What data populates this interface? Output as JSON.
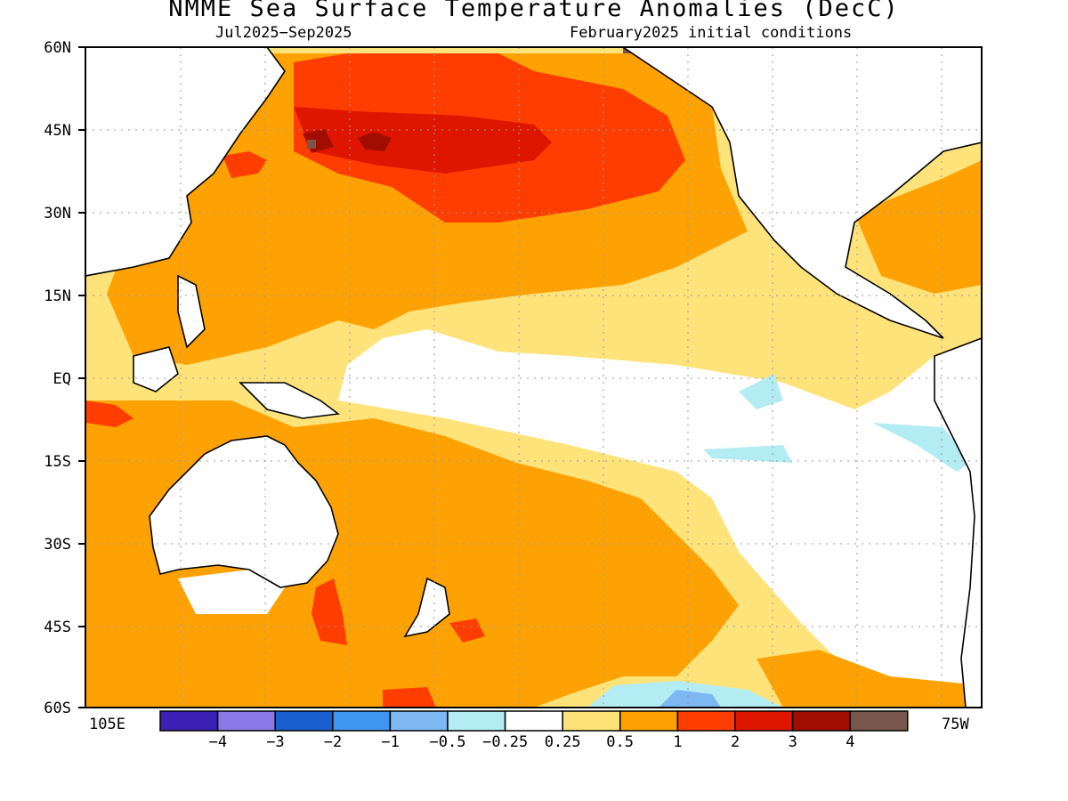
{
  "title": "NMME Sea Surface Temperature Anomalies (DecC)",
  "subtitle_left": "Jul2025−Sep2025",
  "subtitle_right": "February2025 initial conditions",
  "lat_labels": [
    "60N",
    "45N",
    "30N",
    "15N",
    "EQ",
    "15S",
    "30S",
    "45S",
    "60S"
  ],
  "lon_left_label": "105E",
  "lon_right_label": "75W",
  "colorbar": {
    "colors": [
      "#3c1fb4",
      "#8a79e6",
      "#1a5fd0",
      "#3f95f0",
      "#7eb8f2",
      "#b4ecf4",
      "#ffffff",
      "#fee37b",
      "#fea204",
      "#fe3d00",
      "#de1600",
      "#a10d00",
      "#79564b"
    ],
    "labels": [
      "−4",
      "−3",
      "−2",
      "−1",
      "−0.5",
      "−0.25",
      "0.25",
      "0.5",
      "1",
      "2",
      "3",
      "4"
    ]
  },
  "colors": {
    "white": "#ffffff",
    "yellow": "#fee37b",
    "orange": "#fea204",
    "red": "#fe3d00",
    "dark_red": "#de1600",
    "darker_red": "#a10d00",
    "brown": "#79564b",
    "light_cyan": "#b4ecf4",
    "light_blue": "#7eb8f2",
    "blue": "#3f95f0"
  }
}
